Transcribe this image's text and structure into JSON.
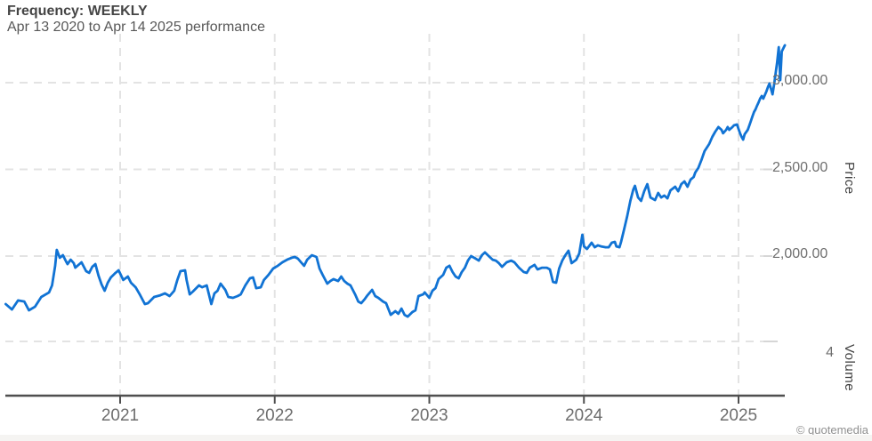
{
  "header": {
    "title": "Frequency: WEEKLY",
    "subtitle": "Apr 13 2020 to Apr 14 2025 performance"
  },
  "axes": {
    "price_axis_title": "Price",
    "volume_axis_title": "Volume",
    "price_ticks": [
      {
        "label": "3,000.00",
        "value": 3000
      },
      {
        "label": "2,500.00",
        "value": 2500
      },
      {
        "label": "2,000.00",
        "value": 2000
      }
    ],
    "volume_ticks": [
      {
        "label": "4"
      }
    ],
    "year_ticks": [
      "2021",
      "2022",
      "2023",
      "2024",
      "2025"
    ]
  },
  "footer": {
    "attribution": "© quotemedia"
  },
  "colors": {
    "line": "#1173d4",
    "grid": "#e3e3e3",
    "grid_end_tick": "#d6d6d6",
    "axis": "#4f4f4f"
  },
  "chart_data": {
    "type": "line",
    "title": "Frequency: WEEKLY",
    "subtitle": "Apr 13 2020 to Apr 14 2025 performance",
    "x_unit": "decimal_year",
    "x_range": [
      2020.26,
      2025.3
    ],
    "grid": "dashed",
    "legend_position": "none",
    "price_axis": {
      "label": "Price",
      "side": "right",
      "ticks": [
        2000,
        2500,
        3000
      ]
    },
    "volume_axis": {
      "label": "Volume",
      "ticks": [
        4
      ]
    },
    "series": [
      {
        "name": "price",
        "color": "#1173d4",
        "points": [
          [
            2020.26,
            1723
          ],
          [
            2020.3,
            1692
          ],
          [
            2020.34,
            1744
          ],
          [
            2020.38,
            1738
          ],
          [
            2020.41,
            1687
          ],
          [
            2020.45,
            1708
          ],
          [
            2020.49,
            1764
          ],
          [
            2020.54,
            1790
          ],
          [
            2020.56,
            1831
          ],
          [
            2020.58,
            1944
          ],
          [
            2020.59,
            2036
          ],
          [
            2020.61,
            1990
          ],
          [
            2020.63,
            2005
          ],
          [
            2020.65,
            1969
          ],
          [
            2020.66,
            1954
          ],
          [
            2020.68,
            1979
          ],
          [
            2020.7,
            1959
          ],
          [
            2020.71,
            1933
          ],
          [
            2020.75,
            1964
          ],
          [
            2020.78,
            1913
          ],
          [
            2020.8,
            1903
          ],
          [
            2020.82,
            1938
          ],
          [
            2020.84,
            1954
          ],
          [
            2020.86,
            1887
          ],
          [
            2020.88,
            1836
          ],
          [
            2020.9,
            1800
          ],
          [
            2020.92,
            1846
          ],
          [
            2020.94,
            1877
          ],
          [
            2020.97,
            1903
          ],
          [
            2020.99,
            1918
          ],
          [
            2021.02,
            1862
          ],
          [
            2021.05,
            1882
          ],
          [
            2021.07,
            1846
          ],
          [
            2021.1,
            1820
          ],
          [
            2021.13,
            1774
          ],
          [
            2021.16,
            1723
          ],
          [
            2021.18,
            1728
          ],
          [
            2021.22,
            1764
          ],
          [
            2021.26,
            1774
          ],
          [
            2021.29,
            1785
          ],
          [
            2021.32,
            1769
          ],
          [
            2021.35,
            1800
          ],
          [
            2021.37,
            1862
          ],
          [
            2021.39,
            1913
          ],
          [
            2021.42,
            1918
          ],
          [
            2021.43,
            1862
          ],
          [
            2021.45,
            1779
          ],
          [
            2021.47,
            1795
          ],
          [
            2021.51,
            1831
          ],
          [
            2021.53,
            1820
          ],
          [
            2021.56,
            1831
          ],
          [
            2021.59,
            1723
          ],
          [
            2021.61,
            1785
          ],
          [
            2021.63,
            1800
          ],
          [
            2021.65,
            1841
          ],
          [
            2021.68,
            1805
          ],
          [
            2021.7,
            1764
          ],
          [
            2021.73,
            1759
          ],
          [
            2021.76,
            1769
          ],
          [
            2021.78,
            1779
          ],
          [
            2021.81,
            1831
          ],
          [
            2021.84,
            1872
          ],
          [
            2021.86,
            1877
          ],
          [
            2021.88,
            1815
          ],
          [
            2021.91,
            1820
          ],
          [
            2021.93,
            1862
          ],
          [
            2021.96,
            1892
          ],
          [
            2021.99,
            1928
          ],
          [
            2022.02,
            1944
          ],
          [
            2022.05,
            1964
          ],
          [
            2022.08,
            1979
          ],
          [
            2022.11,
            1990
          ],
          [
            2022.13,
            1995
          ],
          [
            2022.15,
            1985
          ],
          [
            2022.17,
            1964
          ],
          [
            2022.19,
            1944
          ],
          [
            2022.21,
            1979
          ],
          [
            2022.24,
            2005
          ],
          [
            2022.27,
            1995
          ],
          [
            2022.29,
            1928
          ],
          [
            2022.31,
            1892
          ],
          [
            2022.34,
            1841
          ],
          [
            2022.36,
            1856
          ],
          [
            2022.38,
            1867
          ],
          [
            2022.41,
            1856
          ],
          [
            2022.43,
            1882
          ],
          [
            2022.45,
            1856
          ],
          [
            2022.47,
            1841
          ],
          [
            2022.49,
            1831
          ],
          [
            2022.52,
            1779
          ],
          [
            2022.54,
            1738
          ],
          [
            2022.56,
            1728
          ],
          [
            2022.58,
            1749
          ],
          [
            2022.6,
            1774
          ],
          [
            2022.63,
            1805
          ],
          [
            2022.65,
            1769
          ],
          [
            2022.67,
            1759
          ],
          [
            2022.7,
            1738
          ],
          [
            2022.72,
            1728
          ],
          [
            2022.75,
            1661
          ],
          [
            2022.78,
            1682
          ],
          [
            2022.8,
            1667
          ],
          [
            2022.82,
            1697
          ],
          [
            2022.84,
            1661
          ],
          [
            2022.86,
            1651
          ],
          [
            2022.89,
            1677
          ],
          [
            2022.91,
            1687
          ],
          [
            2022.93,
            1769
          ],
          [
            2022.96,
            1779
          ],
          [
            2022.97,
            1790
          ],
          [
            2023.0,
            1759
          ],
          [
            2023.02,
            1800
          ],
          [
            2023.04,
            1815
          ],
          [
            2023.06,
            1867
          ],
          [
            2023.09,
            1892
          ],
          [
            2023.11,
            1933
          ],
          [
            2023.13,
            1944
          ],
          [
            2023.15,
            1908
          ],
          [
            2023.17,
            1882
          ],
          [
            2023.19,
            1872
          ],
          [
            2023.21,
            1908
          ],
          [
            2023.23,
            1933
          ],
          [
            2023.25,
            1974
          ],
          [
            2023.27,
            2000
          ],
          [
            2023.3,
            1985
          ],
          [
            2023.32,
            1974
          ],
          [
            2023.34,
            2005
          ],
          [
            2023.36,
            2021
          ],
          [
            2023.39,
            1995
          ],
          [
            2023.41,
            1979
          ],
          [
            2023.43,
            1974
          ],
          [
            2023.45,
            1959
          ],
          [
            2023.47,
            1938
          ],
          [
            2023.5,
            1964
          ],
          [
            2023.53,
            1974
          ],
          [
            2023.55,
            1964
          ],
          [
            2023.58,
            1933
          ],
          [
            2023.61,
            1908
          ],
          [
            2023.63,
            1903
          ],
          [
            2023.65,
            1933
          ],
          [
            2023.68,
            1949
          ],
          [
            2023.7,
            1923
          ],
          [
            2023.73,
            1933
          ],
          [
            2023.76,
            1933
          ],
          [
            2023.78,
            1923
          ],
          [
            2023.8,
            1851
          ],
          [
            2023.82,
            1846
          ],
          [
            2023.84,
            1928
          ],
          [
            2023.86,
            1974
          ],
          [
            2023.88,
            2005
          ],
          [
            2023.9,
            2031
          ],
          [
            2023.92,
            1959
          ],
          [
            2023.95,
            1979
          ],
          [
            2023.97,
            2015
          ],
          [
            2023.99,
            2123
          ],
          [
            2024.0,
            2056
          ],
          [
            2024.02,
            2041
          ],
          [
            2024.05,
            2077
          ],
          [
            2024.07,
            2051
          ],
          [
            2024.09,
            2062
          ],
          [
            2024.11,
            2056
          ],
          [
            2024.14,
            2051
          ],
          [
            2024.16,
            2051
          ],
          [
            2024.18,
            2077
          ],
          [
            2024.2,
            2082
          ],
          [
            2024.21,
            2056
          ],
          [
            2024.23,
            2051
          ],
          [
            2024.24,
            2082
          ],
          [
            2024.26,
            2154
          ],
          [
            2024.28,
            2231
          ],
          [
            2024.3,
            2318
          ],
          [
            2024.32,
            2385
          ],
          [
            2024.33,
            2405
          ],
          [
            2024.35,
            2338
          ],
          [
            2024.37,
            2318
          ],
          [
            2024.39,
            2374
          ],
          [
            2024.41,
            2415
          ],
          [
            2024.43,
            2338
          ],
          [
            2024.46,
            2323
          ],
          [
            2024.48,
            2364
          ],
          [
            2024.5,
            2338
          ],
          [
            2024.52,
            2349
          ],
          [
            2024.54,
            2333
          ],
          [
            2024.56,
            2379
          ],
          [
            2024.59,
            2400
          ],
          [
            2024.61,
            2374
          ],
          [
            2024.63,
            2415
          ],
          [
            2024.65,
            2431
          ],
          [
            2024.67,
            2400
          ],
          [
            2024.69,
            2441
          ],
          [
            2024.71,
            2456
          ],
          [
            2024.72,
            2482
          ],
          [
            2024.74,
            2508
          ],
          [
            2024.76,
            2554
          ],
          [
            2024.78,
            2605
          ],
          [
            2024.81,
            2646
          ],
          [
            2024.83,
            2687
          ],
          [
            2024.85,
            2718
          ],
          [
            2024.87,
            2744
          ],
          [
            2024.89,
            2728
          ],
          [
            2024.9,
            2708
          ],
          [
            2024.92,
            2728
          ],
          [
            2024.93,
            2744
          ],
          [
            2024.94,
            2728
          ],
          [
            2024.96,
            2744
          ],
          [
            2024.97,
            2754
          ],
          [
            2024.99,
            2759
          ],
          [
            2025.0,
            2733
          ],
          [
            2025.01,
            2708
          ],
          [
            2025.02,
            2687
          ],
          [
            2025.03,
            2672
          ],
          [
            2025.04,
            2703
          ],
          [
            2025.06,
            2728
          ],
          [
            2025.07,
            2754
          ],
          [
            2025.08,
            2779
          ],
          [
            2025.09,
            2805
          ],
          [
            2025.1,
            2831
          ],
          [
            2025.11,
            2846
          ],
          [
            2025.12,
            2867
          ],
          [
            2025.13,
            2887
          ],
          [
            2025.14,
            2908
          ],
          [
            2025.15,
            2923
          ],
          [
            2025.16,
            2908
          ],
          [
            2025.18,
            2949
          ],
          [
            2025.19,
            2974
          ],
          [
            2025.2,
            2995
          ],
          [
            2025.21,
            2964
          ],
          [
            2025.22,
            2933
          ],
          [
            2025.23,
            2990
          ],
          [
            2025.25,
            3118
          ],
          [
            2025.26,
            3205
          ],
          [
            2025.27,
            3015
          ],
          [
            2025.28,
            3180
          ],
          [
            2025.3,
            3216
          ]
        ]
      }
    ]
  }
}
